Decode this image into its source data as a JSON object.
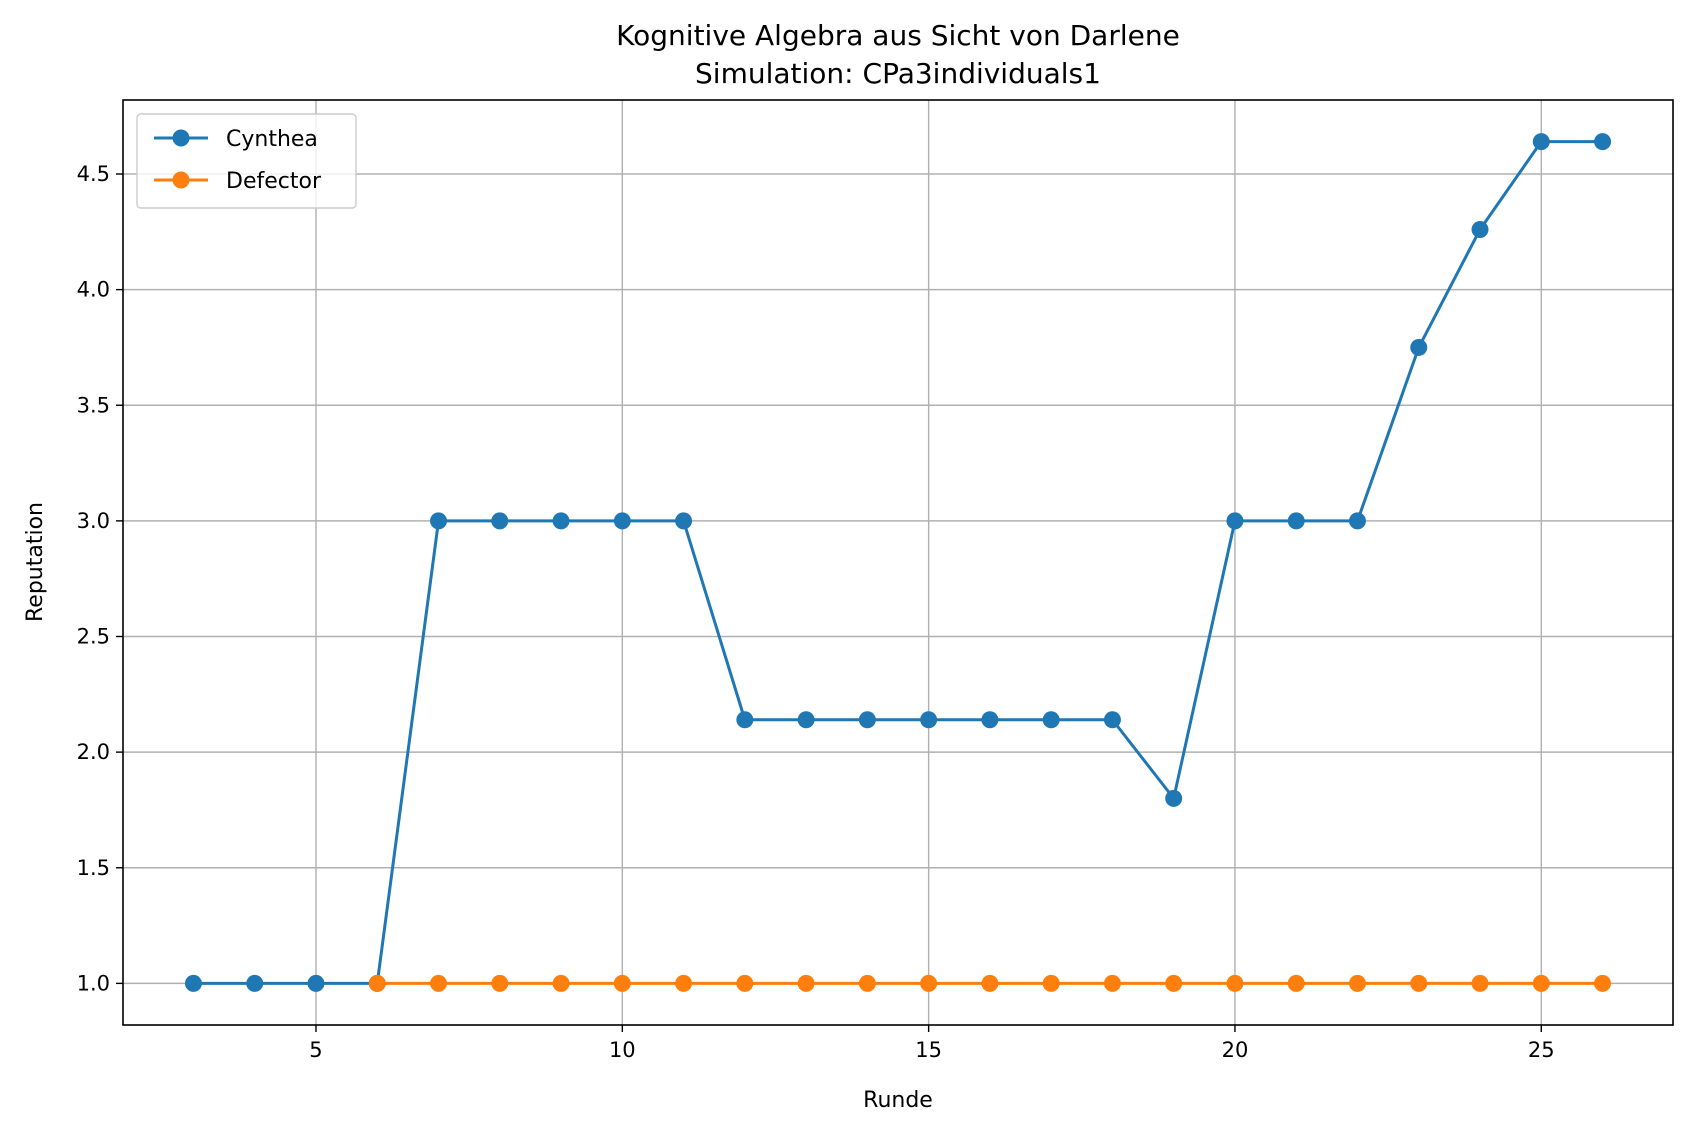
{
  "chart_data": {
    "type": "line",
    "title": "Kognitive Algebra aus Sicht von Darlene",
    "subtitle": "Simulation: CPa3individuals1",
    "xlabel": "Runde",
    "ylabel": "Reputation",
    "xlim": [
      1.85,
      27.15
    ],
    "ylim": [
      0.82,
      4.82
    ],
    "xticks": [
      5,
      10,
      15,
      20,
      25
    ],
    "yticks": [
      1.0,
      1.5,
      2.0,
      2.5,
      3.0,
      3.5,
      4.0,
      4.5
    ],
    "xtick_labels": [
      "5",
      "10",
      "15",
      "20",
      "25"
    ],
    "ytick_labels": [
      "1.0",
      "1.5",
      "2.0",
      "2.5",
      "3.0",
      "3.5",
      "4.0",
      "4.5"
    ],
    "grid": true,
    "legend_position": "upper-left",
    "series": [
      {
        "name": "Cynthea",
        "color": "#1f77b4",
        "marker": "circle",
        "x": [
          3,
          4,
          5,
          6,
          7,
          8,
          9,
          10,
          11,
          12,
          13,
          14,
          15,
          16,
          17,
          18,
          19,
          20,
          21,
          22,
          23,
          24,
          25,
          26
        ],
        "y": [
          1.0,
          1.0,
          1.0,
          1.0,
          3.0,
          3.0,
          3.0,
          3.0,
          3.0,
          2.14,
          2.14,
          2.14,
          2.14,
          2.14,
          2.14,
          2.14,
          1.8,
          3.0,
          3.0,
          3.0,
          3.75,
          4.26,
          4.64,
          4.64
        ]
      },
      {
        "name": "Defector",
        "color": "#ff7f0e",
        "marker": "circle",
        "x": [
          6,
          7,
          8,
          9,
          10,
          11,
          12,
          13,
          14,
          15,
          16,
          17,
          18,
          19,
          20,
          21,
          22,
          23,
          24,
          25,
          26
        ],
        "y": [
          1.0,
          1.0,
          1.0,
          1.0,
          1.0,
          1.0,
          1.0,
          1.0,
          1.0,
          1.0,
          1.0,
          1.0,
          1.0,
          1.0,
          1.0,
          1.0,
          1.0,
          1.0,
          1.0,
          1.0,
          1.0
        ]
      }
    ]
  }
}
